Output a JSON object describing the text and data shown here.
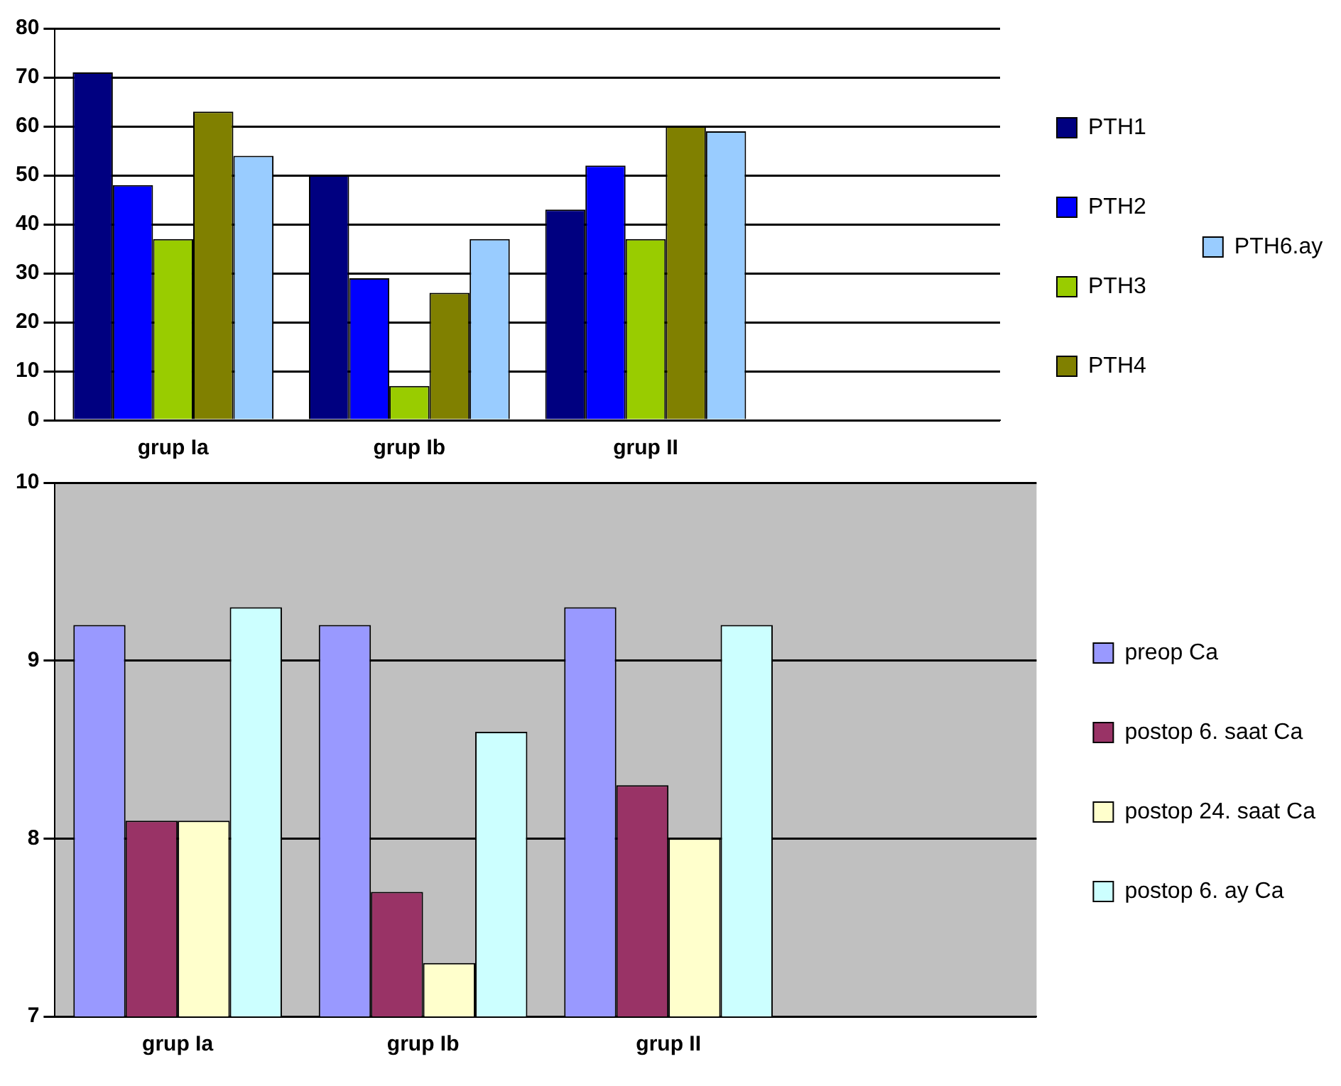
{
  "chart_data": [
    {
      "type": "bar",
      "categories": [
        "grup Ia",
        "grup Ib",
        "grup II",
        null
      ],
      "series": [
        {
          "name": "PTH1",
          "color": "#000080",
          "values": [
            71,
            50,
            43,
            null
          ]
        },
        {
          "name": "PTH2",
          "color": "#0000ff",
          "values": [
            48,
            29,
            52,
            null
          ]
        },
        {
          "name": "PTH3",
          "color": "#99cc00",
          "values": [
            37,
            7,
            37,
            null
          ]
        },
        {
          "name": "PTH4",
          "color": "#808000",
          "values": [
            63,
            26,
            60,
            null
          ]
        },
        {
          "name": "PTH6.ay",
          "color": "#99ccff",
          "values": [
            54,
            37,
            59,
            null
          ]
        }
      ],
      "ylim": [
        0,
        80
      ],
      "yticks": [
        0,
        10,
        20,
        30,
        40,
        50,
        60,
        70,
        80
      ],
      "grid": "y",
      "legend": "right"
    },
    {
      "type": "bar",
      "categories": [
        "grup Ia",
        "grup Ib",
        "grup II",
        null
      ],
      "series": [
        {
          "name": "preop Ca",
          "color": "#9999ff",
          "values": [
            9.2,
            9.2,
            9.3,
            null
          ]
        },
        {
          "name": "postop 6. saat Ca",
          "color": "#993366",
          "values": [
            8.1,
            7.7,
            8.3,
            null
          ]
        },
        {
          "name": "postop 24. saat Ca",
          "color": "#ffffcc",
          "values": [
            8.1,
            7.3,
            8.0,
            null
          ]
        },
        {
          "name": "postop 6. ay Ca",
          "color": "#ccffff",
          "values": [
            9.3,
            8.6,
            9.2,
            null
          ]
        }
      ],
      "ylim": [
        7,
        10
      ],
      "yticks": [
        7,
        8,
        9,
        10
      ],
      "grid": "y",
      "legend": "right"
    }
  ]
}
